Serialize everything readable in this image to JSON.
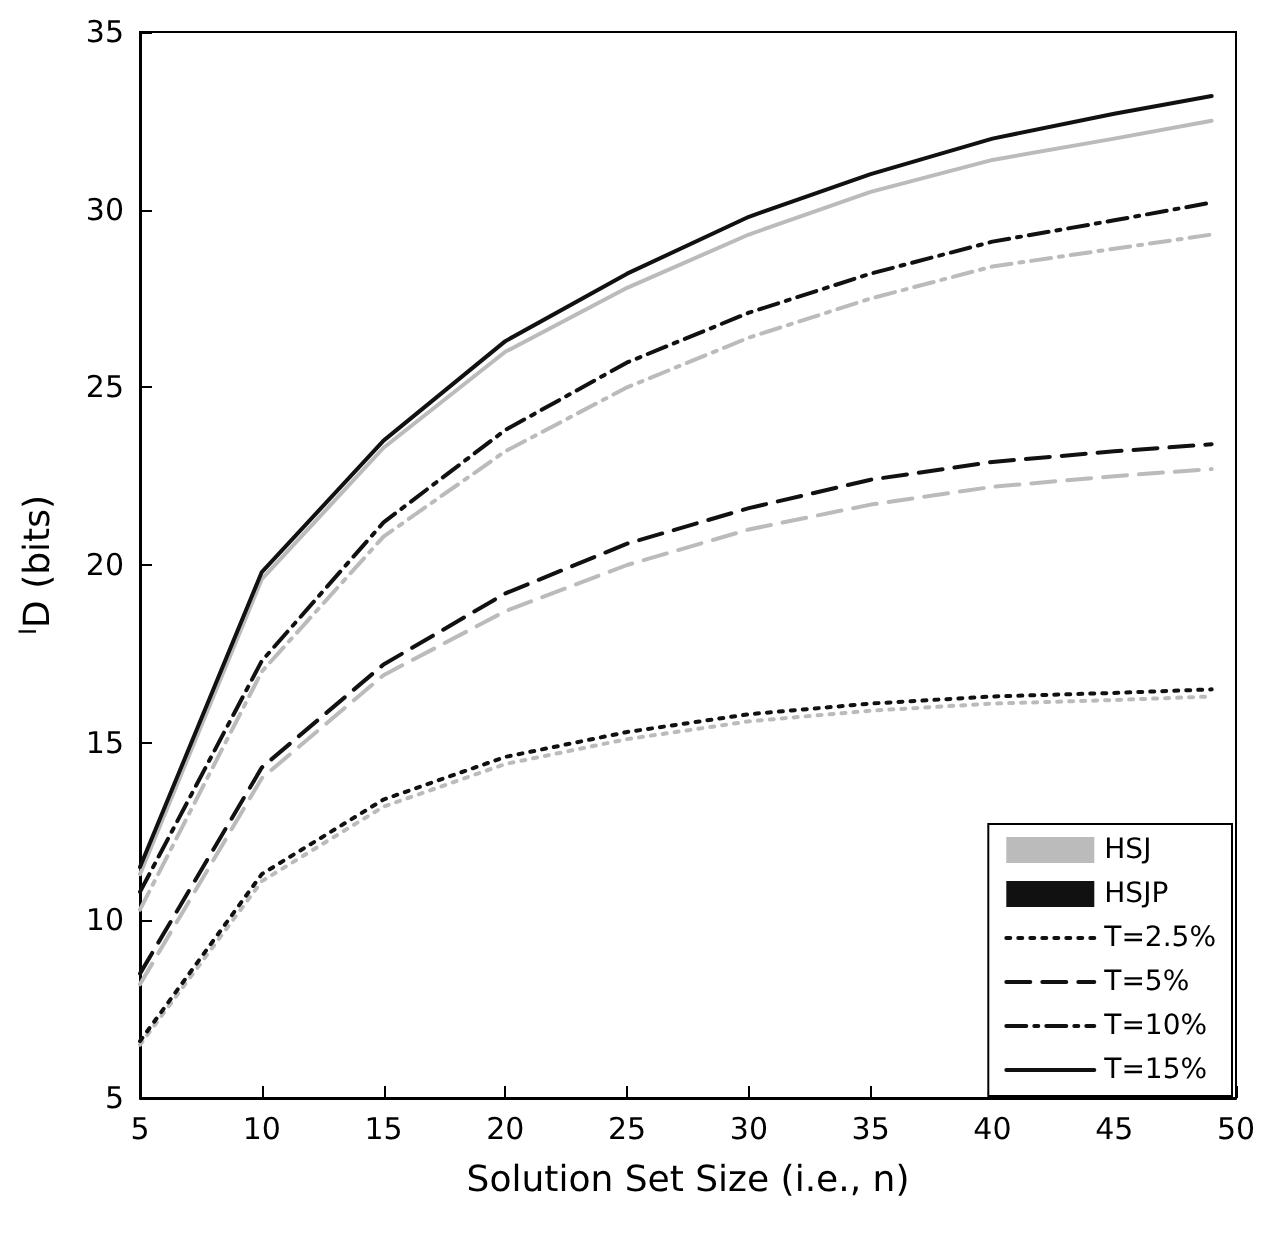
{
  "chart_data": {
    "type": "line",
    "xlabel": "Solution Set Size (i.e., n)",
    "ylabel": "$^{I}$D (bits)",
    "x": [
      5,
      10,
      15,
      20,
      25,
      30,
      35,
      40,
      45,
      49
    ],
    "xlim": [
      5,
      50
    ],
    "xticks": [
      5,
      10,
      15,
      20,
      25,
      30,
      35,
      40,
      45,
      50
    ],
    "ylim": [
      5,
      35
    ],
    "yticks": [
      5,
      10,
      15,
      20,
      25,
      30,
      35
    ],
    "grid": false,
    "legend": "bottom right",
    "marker": "none",
    "series": [
      {
        "name": "HSJ",
        "color": "#bbbbbb",
        "values": [
          null,
          null,
          null,
          null,
          null,
          null,
          null,
          null,
          null,
          null
        ]
      },
      {
        "name": "HSJP",
        "color": "#111111",
        "values": [
          null,
          null,
          null,
          null,
          null,
          null,
          null,
          null,
          null,
          null
        ]
      },
      {
        "color": "#bbbbbb",
        "line_style": "dotted",
        "values": [
          6.5,
          11.1,
          13.2,
          14.4,
          15.1,
          15.6,
          15.9,
          16.1,
          16.2,
          16.3
        ]
      },
      {
        "name": "T=2.5%",
        "color": "#111111",
        "line_style": "dotted",
        "values": [
          6.6,
          11.3,
          13.4,
          14.6,
          15.3,
          15.8,
          16.1,
          16.3,
          16.4,
          16.5
        ]
      },
      {
        "color": "#bbbbbb",
        "line_style": "dashed",
        "values": [
          8.2,
          14,
          16.9,
          18.7,
          20,
          21,
          21.7,
          22.2,
          22.5,
          22.7
        ]
      },
      {
        "name": "T=5%",
        "color": "#111111",
        "line_style": "dashed",
        "values": [
          8.5,
          14.3,
          17.2,
          19.2,
          20.6,
          21.6,
          22.4,
          22.9,
          23.2,
          23.4
        ]
      },
      {
        "color": "#bbbbbb",
        "line_style": "dashdot",
        "values": [
          10.3,
          17,
          20.8,
          23.2,
          25,
          26.4,
          27.5,
          28.4,
          28.9,
          29.3
        ]
      },
      {
        "name": "T=10%",
        "color": "#111111",
        "line_style": "dashdot",
        "values": [
          10.8,
          17.3,
          21.2,
          23.8,
          25.7,
          27.1,
          28.2,
          29.1,
          29.7,
          30.2
        ]
      },
      {
        "color": "#bbbbbb",
        "line_style": "solid",
        "values": [
          11.3,
          19.6,
          23.3,
          26,
          27.8,
          29.3,
          30.5,
          31.4,
          32,
          32.5
        ]
      },
      {
        "name": "T=15%",
        "color": "#111111",
        "line_style": "solid",
        "values": [
          11.5,
          19.8,
          23.5,
          26.3,
          28.2,
          29.8,
          31,
          32,
          32.7,
          33.2
        ]
      }
    ]
  }
}
